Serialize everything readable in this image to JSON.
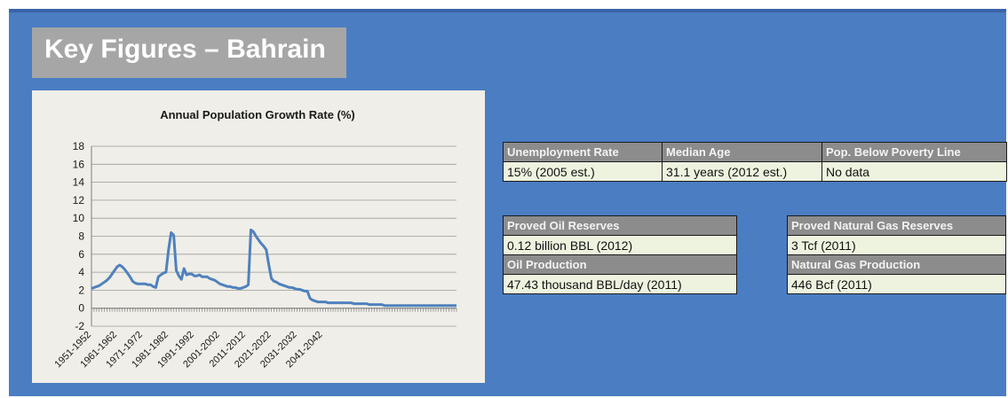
{
  "title": "Key Figures – Bahrain",
  "colors": {
    "panel": "#4a7dc2",
    "title_box": "#a6a6a6",
    "chart_bg": "#efeee8",
    "line": "#4f81bd",
    "header_cell": "#8c8c8c",
    "value_cell": "#eef3df"
  },
  "chart_data": {
    "type": "line",
    "title": "Annual Population Growth Rate (%)",
    "xlabel": "",
    "ylabel": "",
    "ylim": [
      -2,
      18
    ],
    "yticks": [
      -2,
      0,
      2,
      4,
      6,
      8,
      10,
      12,
      14,
      16,
      18
    ],
    "grid": true,
    "legend": "none",
    "x_tick_labels": [
      "1951-1952",
      "1961-1962",
      "1971-1972",
      "1981-1982",
      "1991-1992",
      "2001-2002",
      "2011-2012",
      "2021-2022",
      "2031-2032",
      "2041-2042"
    ],
    "x_start_year": 1951,
    "series": [
      {
        "values": [
          2.2,
          2.3,
          2.4,
          2.5,
          2.7,
          2.9,
          3.1,
          3.4,
          3.8,
          4.2,
          4.6,
          4.8,
          4.6,
          4.3,
          3.9,
          3.5,
          3.0,
          2.8,
          2.7,
          2.7,
          2.7,
          2.7,
          2.6,
          2.6,
          2.4,
          2.3,
          3.5,
          3.7,
          3.9,
          4.0,
          6.5,
          8.4,
          8.1,
          4.2,
          3.6,
          3.2,
          4.4,
          3.7,
          3.8,
          3.8,
          3.6,
          3.6,
          3.7,
          3.5,
          3.5,
          3.5,
          3.3,
          3.2,
          3.1,
          2.9,
          2.7,
          2.6,
          2.5,
          2.4,
          2.4,
          2.3,
          2.3,
          2.2,
          2.2,
          2.3,
          2.4,
          2.6,
          8.7,
          8.5,
          8.0,
          7.6,
          7.2,
          6.9,
          6.5,
          4.8,
          3.3,
          3.0,
          2.9,
          2.7,
          2.6,
          2.5,
          2.4,
          2.3,
          2.3,
          2.2,
          2.1,
          2.1,
          2.0,
          1.9,
          1.9,
          1.1,
          0.9,
          0.8,
          0.7,
          0.7,
          0.7,
          0.7,
          0.6,
          0.6,
          0.6,
          0.6,
          0.6,
          0.6,
          0.6,
          0.6,
          0.6,
          0.6,
          0.5,
          0.5,
          0.5,
          0.5,
          0.5,
          0.5,
          0.4,
          0.4,
          0.4,
          0.4,
          0.4,
          0.4,
          0.3,
          0.3,
          0.3,
          0.3,
          0.3,
          0.3,
          0.3,
          0.3,
          0.3,
          0.3,
          0.3,
          0.3,
          0.3,
          0.3,
          0.3,
          0.3,
          0.3,
          0.3,
          0.3,
          0.3,
          0.3,
          0.3,
          0.3,
          0.3,
          0.3,
          0.3,
          0.3,
          0.3,
          0.3
        ]
      }
    ]
  },
  "table1": {
    "headers": [
      "Unemployment Rate",
      "Median Age",
      "Pop. Below Poverty Line"
    ],
    "values": [
      "15% (2005 est.)",
      "31.1 years (2012 est.)",
      "No data"
    ]
  },
  "oil": {
    "reserves_label": "Proved Oil Reserves",
    "reserves_value": "0.12 billion BBL (2012)",
    "production_label": "Oil Production",
    "production_value": "47.43 thousand BBL/day (2011)"
  },
  "gas": {
    "reserves_label": "Proved Natural Gas Reserves",
    "reserves_value": "3 Tcf (2011)",
    "production_label": "Natural Gas Production",
    "production_value": "446 Bcf  (2011)"
  }
}
